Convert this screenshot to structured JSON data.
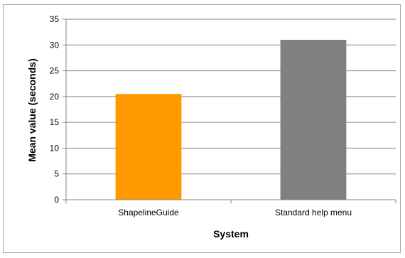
{
  "chart_data": {
    "type": "bar",
    "categories": [
      "ShapelineGuide",
      "Standard help menu"
    ],
    "values": [
      20.5,
      31
    ],
    "colors": [
      "#ff9900",
      "#808080"
    ],
    "xlabel": "System",
    "ylabel": "Mean value (seconds)",
    "ylim": [
      0,
      35
    ],
    "yticks": [
      0,
      5,
      10,
      15,
      20,
      25,
      30,
      35
    ],
    "grid": true,
    "legend": "none",
    "gridline_color": "#868686",
    "axis_color": "#868686"
  }
}
